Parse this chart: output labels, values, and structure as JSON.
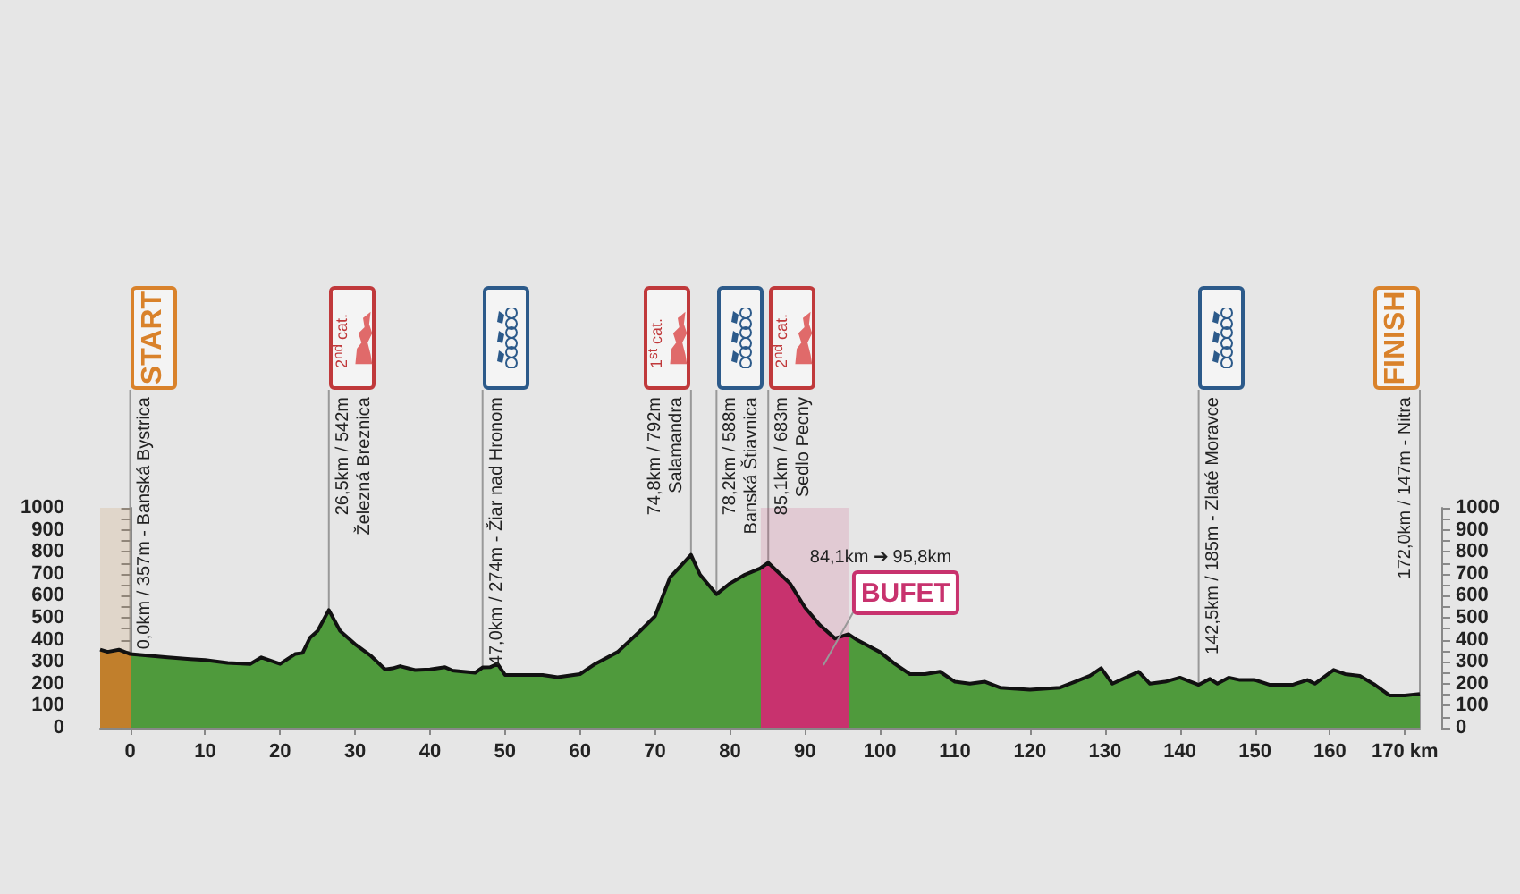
{
  "chart_data": {
    "type": "area",
    "x": [
      -4,
      -3,
      -1.5,
      0,
      5,
      8,
      10,
      13,
      16,
      17.5,
      20,
      22,
      23,
      24,
      25,
      26.5,
      28,
      30,
      32,
      34,
      35,
      36,
      38,
      40,
      42,
      43,
      46,
      47,
      48,
      49,
      50,
      55,
      57,
      60,
      62,
      65,
      68,
      70,
      72,
      74.8,
      76,
      78.2,
      80,
      82,
      84,
      85.1,
      88,
      90,
      92,
      94,
      95.8,
      97,
      100,
      102,
      104,
      106,
      108,
      110,
      112,
      114,
      116,
      120,
      124,
      126,
      128,
      129.5,
      131,
      134.5,
      136,
      138,
      140,
      142.5,
      144,
      145,
      146.5,
      148,
      150,
      152,
      155,
      157,
      158,
      160.5,
      162,
      164,
      166,
      168,
      170,
      172
    ],
    "series": [
      {
        "color": "#4f9a3c",
        "values": [
          355,
          345,
          355,
          335,
          320,
          312,
          308,
          295,
          290,
          320,
          290,
          335,
          340,
          410,
          440,
          535,
          440,
          380,
          330,
          265,
          270,
          280,
          262,
          265,
          275,
          260,
          250,
          274,
          275,
          290,
          240,
          240,
          230,
          244,
          290,
          344,
          439,
          507,
          683,
          786,
          696,
          607,
          656,
          696,
          724,
          750,
          656,
          547,
          466,
          406,
          425,
          398,
          344,
          290,
          244,
          244,
          255,
          209,
          200,
          209,
          182,
          173,
          182,
          209,
          236,
          271,
          200,
          255,
          200,
          209,
          228,
          195,
          222,
          200,
          228,
          217,
          217,
          195,
          195,
          217,
          200,
          263,
          244,
          236,
          195,
          146,
          146,
          154
        ]
      }
    ],
    "xlim": [
      -4,
      172
    ],
    "xticks": [
      0,
      10,
      20,
      30,
      40,
      50,
      60,
      70,
      80,
      90,
      100,
      110,
      120,
      130,
      140,
      150,
      160,
      {
        "value": 170,
        "label": "170 km"
      }
    ],
    "ylim": [
      0,
      1000
    ],
    "yticks": [
      0,
      {
        "value": 50,
        "label": null
      },
      100,
      {
        "value": 150,
        "label": null
      },
      200,
      {
        "value": 250,
        "label": null
      },
      300,
      {
        "value": 350,
        "label": null
      },
      400,
      {
        "value": 450,
        "label": null
      },
      500,
      {
        "value": 550,
        "label": null
      },
      600,
      {
        "value": 650,
        "label": null
      },
      700,
      {
        "value": 750,
        "label": null
      },
      800,
      {
        "value": 850,
        "label": null
      },
      900,
      {
        "value": 950,
        "label": null
      },
      1000
    ],
    "y2lim": [
      0,
      1000
    ],
    "y2ticks": [
      0,
      {
        "value": 50,
        "label": null
      },
      100,
      {
        "value": 150,
        "label": null
      },
      200,
      {
        "value": 250,
        "label": null
      },
      300,
      {
        "value": 350,
        "label": null
      },
      400,
      {
        "value": 450,
        "label": null
      },
      500,
      {
        "value": 550,
        "label": null
      },
      600,
      {
        "value": 650,
        "label": null
      },
      700,
      {
        "value": 750,
        "label": null
      },
      800,
      {
        "value": 850,
        "label": null
      },
      900,
      {
        "value": 950,
        "label": null
      },
      1000
    ],
    "ref_lines": [
      {
        "axis": "x",
        "value": 0,
        "label": "0,0km / 357m - Banská Bystrica",
        "color": "#999999"
      },
      {
        "axis": "x",
        "value": 26.5,
        "label": "26,5km / 542m\nŽelezná Breznica",
        "color": "#999999"
      },
      {
        "axis": "x",
        "value": 47,
        "label": "47,0km / 274m - Žiar nad Hronom",
        "color": "#999999"
      },
      {
        "axis": "x",
        "value": 74.8,
        "label": "74,8km / 792m\nSalamandra",
        "color": "#999999"
      },
      {
        "axis": "x",
        "value": 78.2,
        "label": "78,2km / 588m\nBanská Štiavnica",
        "color": "#999999"
      },
      {
        "axis": "x",
        "value": 85.1,
        "label": "85,1km / 683m\nSedlo Pecny",
        "color": "#999999"
      },
      {
        "axis": "x",
        "value": 142.5,
        "label": "142,5km / 185m - Zlaté Moravce",
        "color": "#999999"
      },
      {
        "axis": "x",
        "value": 172,
        "label": "172,0km / 147m - Nitra",
        "color": "#999999"
      }
    ],
    "bands": [
      {
        "axis": "x",
        "from": -4,
        "to": 0,
        "color": "#c17f2c"
      },
      {
        "axis": "x",
        "from": 84.1,
        "to": 95.8,
        "label": "BUFET",
        "color": "#c8326e"
      }
    ],
    "annotations": [
      "START",
      "2$^{nd}$ cat.",
      "1$^{st}$ cat.",
      "2$^{nd}$ cat.",
      "FINISH",
      "84,1km ➔ 95,8km"
    ],
    "grid": false,
    "marker": "none"
  }
}
